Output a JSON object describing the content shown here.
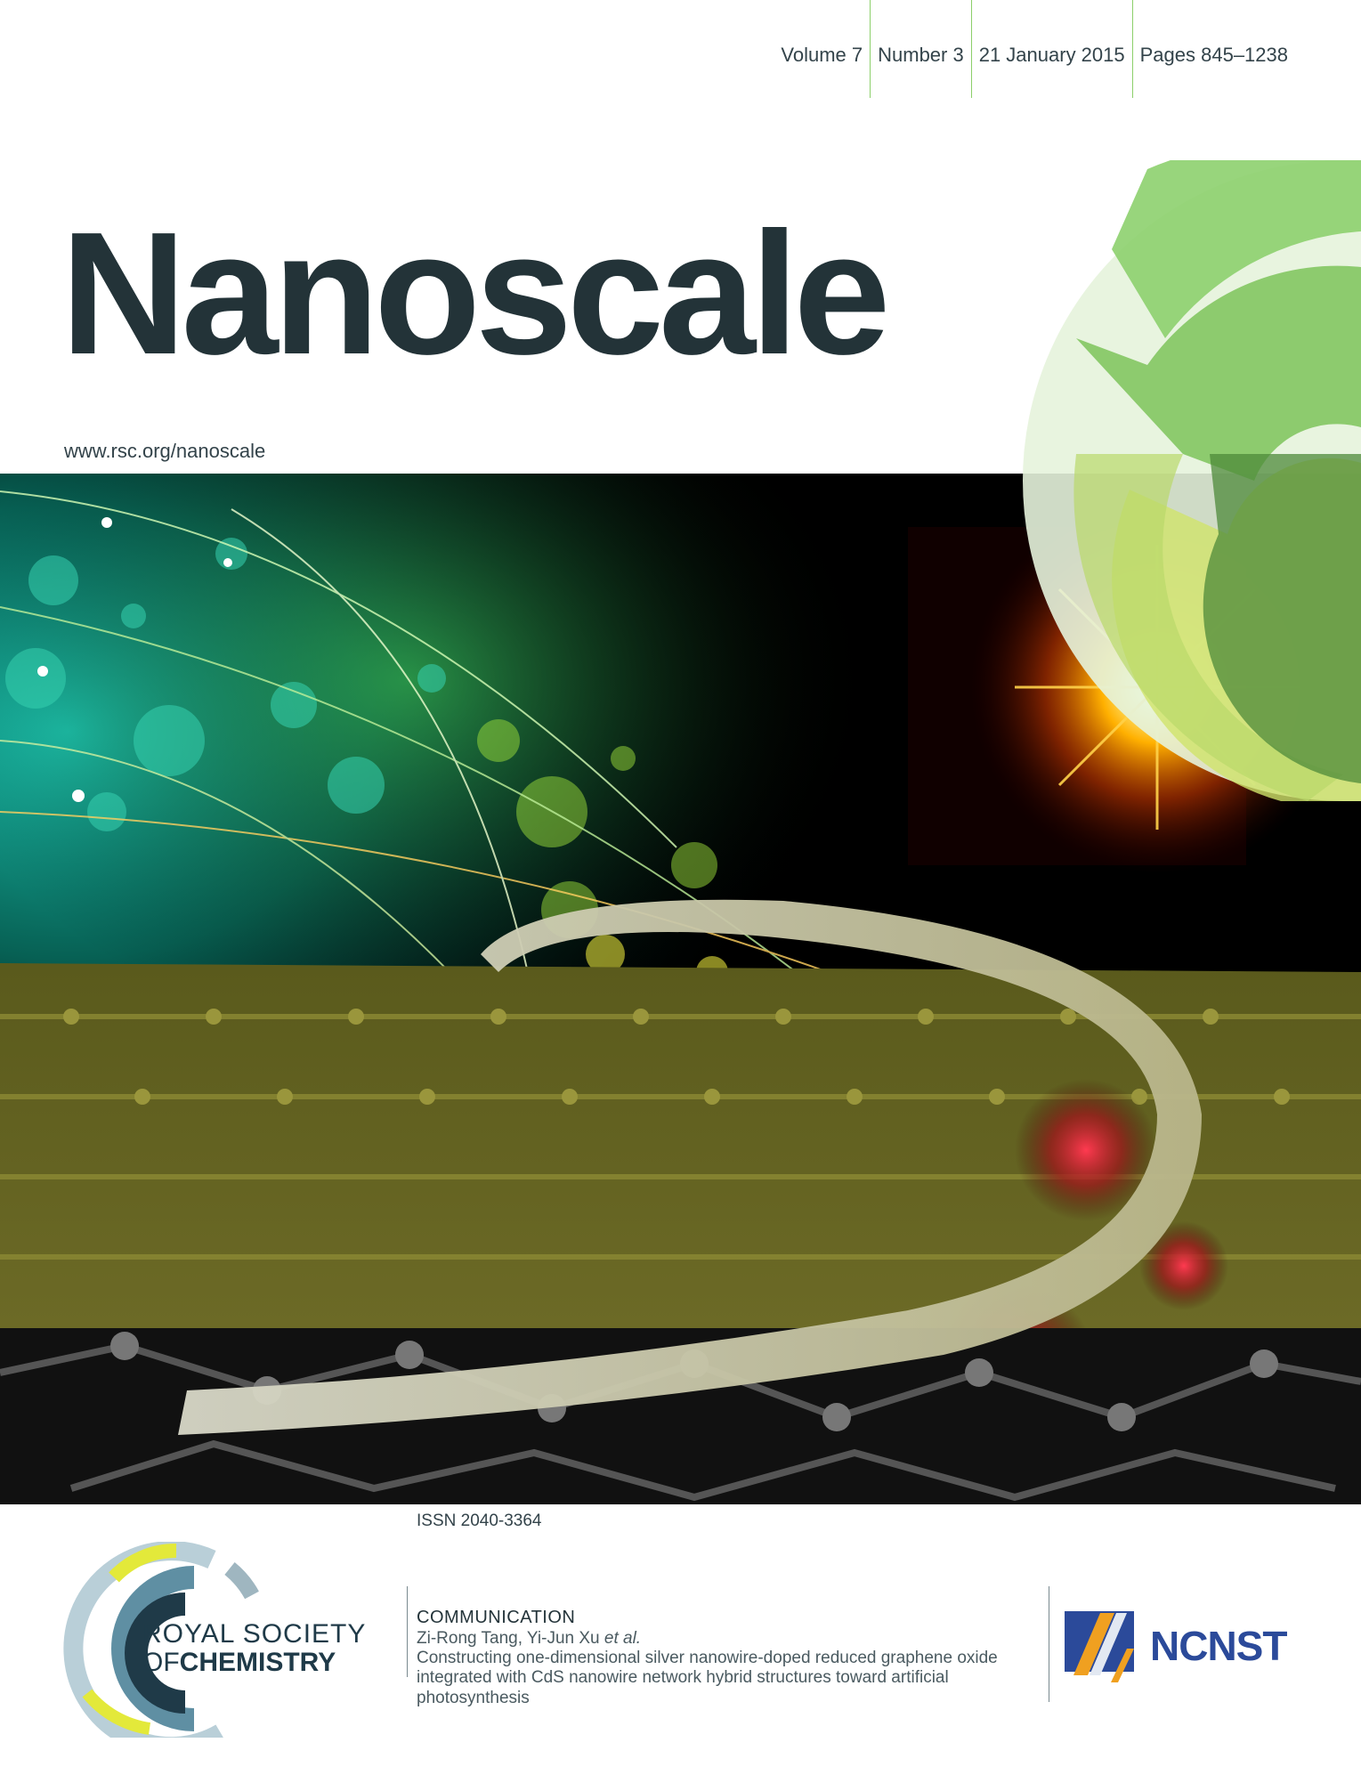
{
  "issue": {
    "volume": "Volume 7",
    "number": "Number 3",
    "date": "21 January 2015",
    "pages": "Pages 845–1238"
  },
  "journal": {
    "title": "Nanoscale",
    "url": "www.rsc.org/nanoscale"
  },
  "issn": "ISSN 2040-3364",
  "publisher": {
    "line1": "ROYAL SOCIETY",
    "line2_prefix": "OF",
    "line2": "CHEMISTRY"
  },
  "article": {
    "type": "COMMUNICATION",
    "authors": "Zi-Rong Tang, Yi-Jun Xu",
    "authors_suffix": "et al.",
    "title": "Constructing one-dimensional silver nanowire-doped reduced graphene oxide integrated with CdS nanowire network hybrid structures toward artificial photosynthesis"
  },
  "partner": {
    "name": "NCNST"
  },
  "colors": {
    "masthead": "#233338",
    "accent_green": "#8ccf6a",
    "ncnst_blue": "#2b4a9a"
  }
}
